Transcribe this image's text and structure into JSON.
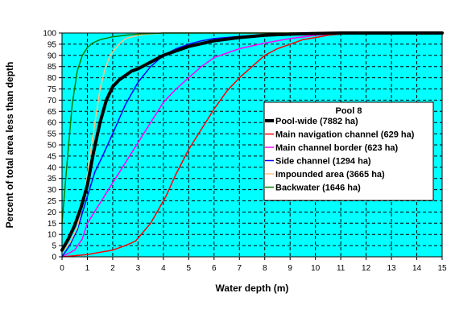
{
  "chart_data": {
    "type": "line",
    "title": "",
    "xlabel": "Water depth (m)",
    "ylabel": "Percent of total area less than depth",
    "xlim": [
      0,
      15
    ],
    "ylim": [
      0,
      100
    ],
    "x_ticks": [
      0,
      1,
      2,
      3,
      4,
      5,
      6,
      7,
      8,
      9,
      10,
      11,
      12,
      13,
      14,
      15
    ],
    "y_ticks": [
      0,
      5,
      10,
      15,
      20,
      25,
      30,
      35,
      40,
      45,
      50,
      55,
      60,
      65,
      70,
      75,
      80,
      85,
      90,
      95,
      100
    ],
    "grid": true,
    "plot_background": "#00ffff",
    "legend": {
      "title": "Pool 8",
      "position": "center-right"
    },
    "series": [
      {
        "name": "Pool-wide (7882 ha)",
        "color": "#000000",
        "width": 4,
        "x": [
          0,
          0.25,
          0.5,
          0.75,
          1.0,
          1.25,
          1.5,
          1.75,
          2.0,
          2.25,
          2.5,
          2.75,
          3.0,
          3.5,
          4.0,
          4.5,
          5.0,
          6.0,
          7.0,
          8.0,
          9.0,
          10.0,
          11.0,
          12.0,
          13.0,
          15.0
        ],
        "y": [
          3,
          8,
          14,
          22,
          32,
          47,
          60,
          70,
          76,
          79,
          81,
          83,
          84,
          87,
          90,
          92,
          94,
          96.5,
          98,
          99,
          99.5,
          99.8,
          100,
          100,
          100,
          100
        ]
      },
      {
        "name": "Main navigation channel (629 ha)",
        "color": "#ff0000",
        "width": 1.5,
        "x": [
          0,
          0.5,
          1.0,
          1.5,
          2.0,
          2.5,
          2.9,
          3.2,
          3.5,
          3.8,
          4.1,
          4.5,
          5.0,
          5.5,
          6.0,
          6.5,
          7.0,
          7.5,
          8.0,
          8.5,
          9.0,
          9.5,
          10.0,
          10.5,
          11.0,
          12.0,
          15.0
        ],
        "y": [
          0,
          0.5,
          1,
          2,
          3,
          5,
          7,
          11,
          15,
          21,
          27,
          37,
          48,
          57,
          66,
          74,
          80,
          85,
          90,
          93,
          95,
          97,
          98,
          99,
          99.5,
          100,
          100
        ]
      },
      {
        "name": "Main channel border (623 ha)",
        "color": "#ff00ff",
        "width": 1.5,
        "x": [
          0,
          0.5,
          0.8,
          1.0,
          1.5,
          2.0,
          2.5,
          3.0,
          3.5,
          4.0,
          4.5,
          5.0,
          5.5,
          6.0,
          6.5,
          7.0,
          8.0,
          9.0,
          10.0,
          11.0,
          12.0,
          15.0
        ],
        "y": [
          0,
          3,
          8,
          15,
          24,
          33,
          42,
          51,
          60,
          69,
          75,
          80,
          85,
          89,
          91,
          93,
          95.5,
          97.5,
          99,
          99.7,
          100,
          100
        ]
      },
      {
        "name": "Side channel (1294 ha)",
        "color": "#0000ff",
        "width": 1.5,
        "x": [
          0,
          0.3,
          0.6,
          1.0,
          1.3,
          1.6,
          2.0,
          2.5,
          3.0,
          3.5,
          4.0,
          4.5,
          5.0,
          5.5,
          6.0,
          7.0,
          8.0,
          9.0,
          10.0,
          15.0
        ],
        "y": [
          0,
          5,
          12,
          27,
          38,
          45,
          55,
          68,
          78,
          85,
          90,
          93,
          95,
          96.5,
          97.5,
          98.5,
          99.3,
          99.7,
          100,
          100
        ]
      },
      {
        "name": "Impounded area (3665 ha)",
        "color": "#ffc080",
        "width": 1.5,
        "x": [
          0,
          0.3,
          0.6,
          0.9,
          1.1,
          1.3,
          1.5,
          1.7,
          1.9,
          2.1,
          2.3,
          2.5,
          3.0,
          3.5,
          4.0,
          4.5,
          15.0
        ],
        "y": [
          2,
          6,
          13,
          28,
          45,
          60,
          75,
          84,
          90,
          93,
          95.5,
          97.5,
          99,
          99.6,
          100,
          100,
          100
        ]
      },
      {
        "name": "Backwater (1646 ha)",
        "color": "#008000",
        "width": 1.5,
        "x": [
          0,
          0.2,
          0.4,
          0.6,
          0.8,
          1.0,
          1.2,
          1.5,
          2.0,
          2.5,
          3.0,
          3.5,
          4.0,
          5.0,
          15.0
        ],
        "y": [
          15,
          42,
          68,
          83,
          90,
          93.5,
          95.5,
          97,
          98.3,
          99,
          99.5,
          99.8,
          100,
          100,
          100
        ]
      }
    ]
  }
}
